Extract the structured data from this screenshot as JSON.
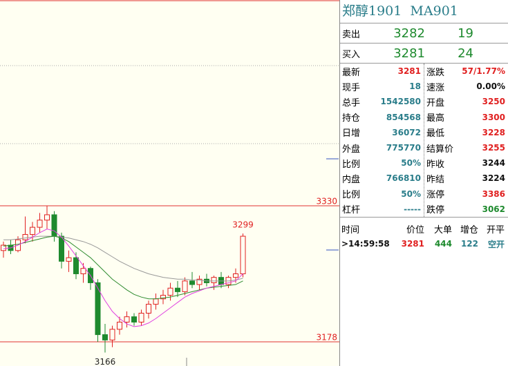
{
  "chart_data": {
    "type": "candlestick",
    "open": [
      3280,
      3286,
      3280,
      3292,
      3298,
      3306,
      3314,
      3320,
      3296,
      3268,
      3272,
      3254,
      3260,
      3244,
      3186,
      3180,
      3192,
      3200,
      3206,
      3200,
      3210,
      3220,
      3226,
      3230,
      3238,
      3234,
      3246,
      3242,
      3248,
      3244,
      3250,
      3242,
      3250,
      3254
    ],
    "high": [
      3290,
      3292,
      3296,
      3318,
      3312,
      3322,
      3330,
      3324,
      3300,
      3280,
      3278,
      3266,
      3262,
      3248,
      3198,
      3196,
      3206,
      3212,
      3210,
      3214,
      3224,
      3232,
      3236,
      3244,
      3246,
      3250,
      3256,
      3252,
      3254,
      3252,
      3256,
      3252,
      3260,
      3299
    ],
    "low": [
      3272,
      3276,
      3278,
      3288,
      3290,
      3300,
      3304,
      3290,
      3260,
      3256,
      3248,
      3244,
      3236,
      3178,
      3166,
      3172,
      3186,
      3194,
      3196,
      3196,
      3204,
      3214,
      3220,
      3224,
      3228,
      3230,
      3238,
      3236,
      3240,
      3236,
      3238,
      3238,
      3244,
      3250
    ],
    "close": [
      3286,
      3280,
      3292,
      3298,
      3306,
      3314,
      3320,
      3296,
      3268,
      3272,
      3254,
      3260,
      3244,
      3186,
      3180,
      3192,
      3200,
      3206,
      3200,
      3210,
      3220,
      3226,
      3230,
      3238,
      3234,
      3246,
      3242,
      3248,
      3244,
      3250,
      3242,
      3250,
      3254,
      3296
    ],
    "up_color": "#e02020",
    "down_color": "#1e8a2e",
    "ma_lines": [
      {
        "color": "#999999",
        "values": [
          3292,
          3292,
          3293,
          3294,
          3295,
          3296,
          3296,
          3296,
          3295,
          3294,
          3292,
          3290,
          3287,
          3283,
          3278,
          3273,
          3268,
          3264,
          3260,
          3257,
          3254,
          3252,
          3250,
          3249,
          3248,
          3248,
          3247,
          3247,
          3246,
          3246,
          3246,
          3246,
          3247,
          3249
        ]
      },
      {
        "color": "#2e8b2e",
        "values": [
          3285,
          3286,
          3287,
          3289,
          3291,
          3293,
          3295,
          3296,
          3294,
          3290,
          3284,
          3278,
          3272,
          3264,
          3256,
          3248,
          3242,
          3236,
          3231,
          3228,
          3226,
          3226,
          3227,
          3228,
          3230,
          3232,
          3234,
          3236,
          3238,
          3239,
          3240,
          3241,
          3242,
          3246
        ]
      },
      {
        "color": "#e040e0",
        "values": [
          3282,
          3283,
          3286,
          3290,
          3295,
          3300,
          3304,
          3302,
          3295,
          3285,
          3274,
          3263,
          3252,
          3238,
          3224,
          3212,
          3204,
          3198,
          3195,
          3196,
          3199,
          3204,
          3210,
          3216,
          3222,
          3228,
          3232,
          3235,
          3238,
          3240,
          3242,
          3244,
          3246,
          3254
        ]
      }
    ],
    "ylim": [
      3152.5,
      3560
    ],
    "yticks": [
      3330,
      3178
    ],
    "annotations": [
      3299,
      3166
    ]
  },
  "panel": {
    "title": "郑醇1901  MA901",
    "ask": {
      "label": "卖出",
      "price": "3282",
      "volume": "19"
    },
    "bid": {
      "label": "买入",
      "price": "3281",
      "volume": "24"
    },
    "left": [
      [
        "最新",
        "3281"
      ],
      [
        "现手",
        "18"
      ],
      [
        "总手",
        "1542580"
      ],
      [
        "持仓",
        "854568"
      ],
      [
        "日增",
        "36072"
      ],
      [
        "外盘",
        "775770"
      ],
      [
        "比例",
        "50%"
      ],
      [
        "内盘",
        "766810"
      ],
      [
        "比例",
        "50%"
      ],
      [
        "杠杆",
        "-----"
      ]
    ],
    "right": [
      [
        "涨跌",
        "57/1.77%"
      ],
      [
        "速涨",
        "0.00%"
      ],
      [
        "开盘",
        "3250"
      ],
      [
        "最高",
        "3300"
      ],
      [
        "最低",
        "3228"
      ],
      [
        "结算价",
        "3255"
      ],
      [
        "昨收",
        "3244"
      ],
      [
        "昨结",
        "3224"
      ],
      [
        "涨停",
        "3386"
      ],
      [
        "跌停",
        "3062"
      ]
    ],
    "left_colors": [
      "red",
      "",
      "",
      "",
      "",
      "",
      "",
      "",
      "",
      ""
    ],
    "right_colors": [
      "red",
      "blk",
      "red",
      "red",
      "red",
      "red",
      "blk",
      "blk",
      "red",
      "grn"
    ],
    "trades": {
      "headers": [
        "时间",
        "价位",
        "大单",
        "增仓",
        "开平"
      ],
      "rows": [
        [
          ">14:59:58",
          "3281",
          "444",
          "122",
          "空开"
        ]
      ]
    }
  }
}
